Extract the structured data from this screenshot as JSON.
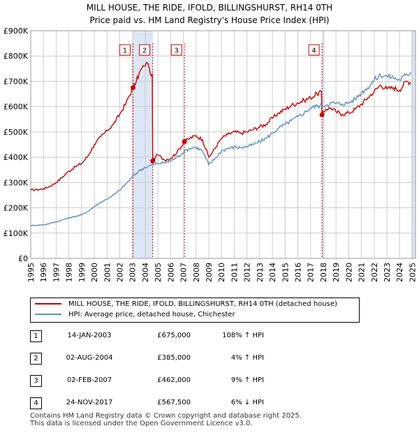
{
  "title": {
    "line1": "MILL HOUSE, THE RIDE, IFOLD, BILLINGSHURST, RH14 0TH",
    "line2": "Price paid vs. HM Land Registry's House Price Index (HPI)"
  },
  "colors": {
    "property": "#cc0000",
    "hpi": "#5b8fc9",
    "shade": "#dce6f5",
    "grid": "#cccccc",
    "marker_border": "#cc0000"
  },
  "chart_data": {
    "type": "line",
    "title": "Price paid vs. HM Land Registry's House Price Index (HPI)",
    "xlim": [
      1995,
      2025.25
    ],
    "ylim": [
      0,
      900000
    ],
    "y_ticks": [
      {
        "value": 0,
        "label": "£0"
      },
      {
        "value": 100000,
        "label": "£100K"
      },
      {
        "value": 200000,
        "label": "£200K"
      },
      {
        "value": 300000,
        "label": "£300K"
      },
      {
        "value": 400000,
        "label": "£400K"
      },
      {
        "value": 500000,
        "label": "£500K"
      },
      {
        "value": 600000,
        "label": "£600K"
      },
      {
        "value": 700000,
        "label": "£700K"
      },
      {
        "value": 800000,
        "label": "£800K"
      },
      {
        "value": 900000,
        "label": "£900K"
      }
    ],
    "x_ticks": [
      "1995",
      "1996",
      "1997",
      "1998",
      "1999",
      "2000",
      "2001",
      "2002",
      "2003",
      "2004",
      "2005",
      "2006",
      "2007",
      "2008",
      "2009",
      "2010",
      "2011",
      "2012",
      "2013",
      "2014",
      "2015",
      "2016",
      "2017",
      "2018",
      "2019",
      "2020",
      "2021",
      "2022",
      "2023",
      "2024",
      "2025"
    ],
    "shaded_ranges": [
      [
        2003.04,
        2004.59
      ],
      [
        2017.9,
        2018.1
      ],
      [
        2024.9,
        2025.25
      ]
    ],
    "series": [
      {
        "name": "MILL HOUSE, THE RIDE, IFOLD, BILLINGSHURST, RH14 0TH (detached house)",
        "color": "#cc0000",
        "points": [
          [
            1995,
            270000
          ],
          [
            1995.5,
            272000
          ],
          [
            1996,
            275000
          ],
          [
            1996.5,
            285000
          ],
          [
            1997,
            300000
          ],
          [
            1997.5,
            322000
          ],
          [
            1998,
            345000
          ],
          [
            1998.5,
            362000
          ],
          [
            1999,
            375000
          ],
          [
            1999.5,
            405000
          ],
          [
            2000,
            450000
          ],
          [
            2000.5,
            480000
          ],
          [
            2001,
            505000
          ],
          [
            2001.5,
            530000
          ],
          [
            2002,
            570000
          ],
          [
            2002.5,
            615000
          ],
          [
            2003.04,
            675000
          ],
          [
            2003.3,
            700000
          ],
          [
            2003.6,
            740000
          ],
          [
            2003.9,
            760000
          ],
          [
            2004.1,
            775000
          ],
          [
            2004.3,
            755000
          ],
          [
            2004.4,
            730000
          ],
          [
            2004.55,
            730000
          ],
          [
            2004.59,
            385000
          ],
          [
            2004.8,
            400000
          ],
          [
            2005,
            410000
          ],
          [
            2005.5,
            390000
          ],
          [
            2006,
            395000
          ],
          [
            2006.5,
            420000
          ],
          [
            2007.09,
            462000
          ],
          [
            2007.5,
            475000
          ],
          [
            2008,
            485000
          ],
          [
            2008.5,
            470000
          ],
          [
            2009,
            400000
          ],
          [
            2009.3,
            420000
          ],
          [
            2009.8,
            460000
          ],
          [
            2010,
            475000
          ],
          [
            2010.5,
            490000
          ],
          [
            2011,
            500000
          ],
          [
            2011.5,
            495000
          ],
          [
            2012,
            500000
          ],
          [
            2012.5,
            510000
          ],
          [
            2013,
            520000
          ],
          [
            2013.5,
            530000
          ],
          [
            2014,
            555000
          ],
          [
            2014.5,
            575000
          ],
          [
            2015,
            590000
          ],
          [
            2015.5,
            605000
          ],
          [
            2016,
            615000
          ],
          [
            2016.5,
            625000
          ],
          [
            2017,
            635000
          ],
          [
            2017.5,
            650000
          ],
          [
            2017.85,
            660000
          ],
          [
            2017.9,
            567500
          ],
          [
            2018.2,
            590000
          ],
          [
            2018.6,
            595000
          ],
          [
            2019,
            580000
          ],
          [
            2019.5,
            570000
          ],
          [
            2020,
            575000
          ],
          [
            2020.5,
            590000
          ],
          [
            2021,
            610000
          ],
          [
            2021.5,
            635000
          ],
          [
            2022,
            660000
          ],
          [
            2022.5,
            685000
          ],
          [
            2023,
            670000
          ],
          [
            2023.5,
            675000
          ],
          [
            2024,
            665000
          ],
          [
            2024.5,
            700000
          ],
          [
            2024.9,
            695000
          ]
        ]
      },
      {
        "name": "HPI: Average price, detached house, Chichester",
        "color": "#5b8fc9",
        "points": [
          [
            1995,
            130000
          ],
          [
            1995.5,
            131000
          ],
          [
            1996,
            133000
          ],
          [
            1996.5,
            138000
          ],
          [
            1997,
            145000
          ],
          [
            1997.5,
            152000
          ],
          [
            1998,
            160000
          ],
          [
            1998.5,
            166000
          ],
          [
            1999,
            172000
          ],
          [
            1999.5,
            186000
          ],
          [
            2000,
            205000
          ],
          [
            2000.5,
            222000
          ],
          [
            2001,
            235000
          ],
          [
            2001.5,
            250000
          ],
          [
            2002,
            270000
          ],
          [
            2002.5,
            295000
          ],
          [
            2003.04,
            325000
          ],
          [
            2003.5,
            345000
          ],
          [
            2004,
            360000
          ],
          [
            2004.59,
            370000
          ],
          [
            2005,
            375000
          ],
          [
            2005.5,
            378000
          ],
          [
            2006,
            385000
          ],
          [
            2006.5,
            400000
          ],
          [
            2007.09,
            423000
          ],
          [
            2007.5,
            435000
          ],
          [
            2008,
            440000
          ],
          [
            2008.5,
            425000
          ],
          [
            2009,
            370000
          ],
          [
            2009.5,
            395000
          ],
          [
            2010,
            425000
          ],
          [
            2010.5,
            435000
          ],
          [
            2011,
            440000
          ],
          [
            2011.5,
            438000
          ],
          [
            2012,
            442000
          ],
          [
            2012.5,
            450000
          ],
          [
            2013,
            462000
          ],
          [
            2013.5,
            475000
          ],
          [
            2014,
            495000
          ],
          [
            2014.5,
            515000
          ],
          [
            2015,
            530000
          ],
          [
            2015.5,
            545000
          ],
          [
            2016,
            560000
          ],
          [
            2016.5,
            575000
          ],
          [
            2017,
            595000
          ],
          [
            2017.5,
            603000
          ],
          [
            2017.9,
            604000
          ],
          [
            2018.3,
            608000
          ],
          [
            2018.7,
            615000
          ],
          [
            2019,
            612000
          ],
          [
            2019.5,
            610000
          ],
          [
            2020,
            615000
          ],
          [
            2020.5,
            630000
          ],
          [
            2021,
            655000
          ],
          [
            2021.5,
            675000
          ],
          [
            2022,
            705000
          ],
          [
            2022.5,
            725000
          ],
          [
            2023,
            720000
          ],
          [
            2023.5,
            715000
          ],
          [
            2024,
            705000
          ],
          [
            2024.5,
            725000
          ],
          [
            2024.9,
            735000
          ]
        ]
      }
    ],
    "sales": [
      {
        "num": "1",
        "x": 2003.04,
        "y": 675000
      },
      {
        "num": "2",
        "x": 2004.59,
        "y": 385000
      },
      {
        "num": "3",
        "x": 2007.09,
        "y": 462000
      },
      {
        "num": "4",
        "x": 2017.9,
        "y": 567500
      }
    ]
  },
  "legend": {
    "property_label": "MILL HOUSE, THE RIDE, IFOLD, BILLINGSHURST, RH14 0TH (detached house)",
    "hpi_label": "HPI: Average price, detached house, Chichester"
  },
  "transactions": [
    {
      "num": "1",
      "date": "14-JAN-2003",
      "price": "£675,000",
      "hpi": "108% ↑ HPI"
    },
    {
      "num": "2",
      "date": "02-AUG-2004",
      "price": "£385,000",
      "hpi": "4% ↑ HPI"
    },
    {
      "num": "3",
      "date": "02-FEB-2007",
      "price": "£462,000",
      "hpi": "9% ↑ HPI"
    },
    {
      "num": "4",
      "date": "24-NOV-2017",
      "price": "£567,500",
      "hpi": "6% ↓ HPI"
    }
  ],
  "footer": {
    "line1": "Contains HM Land Registry data © Crown copyright and database right 2025.",
    "line2": "This data is licensed under the Open Government Licence v3.0."
  }
}
